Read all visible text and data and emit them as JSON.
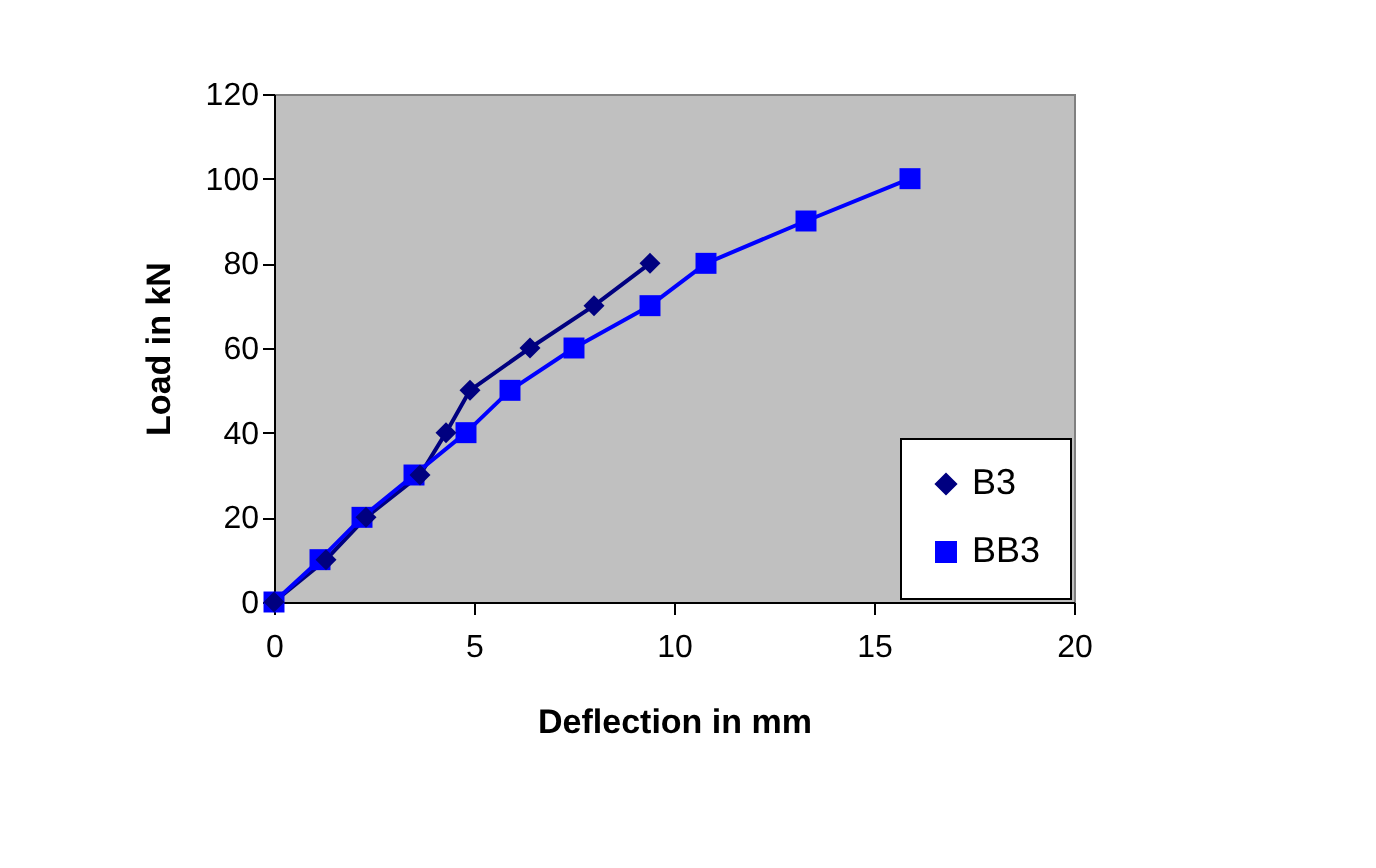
{
  "chart_data": {
    "type": "line",
    "xlabel": "Deflection in mm",
    "ylabel": "Load in kN",
    "xlim": [
      0,
      20
    ],
    "xticks": [
      0,
      5,
      10,
      15,
      20
    ],
    "ylim": [
      0,
      120
    ],
    "yticks": [
      0,
      20,
      40,
      60,
      80,
      100,
      120
    ],
    "grid": false,
    "legend": "bottom right",
    "line_style": "solid",
    "series": [
      {
        "name": "B3",
        "color": "#000080",
        "marker": "diamond",
        "x": [
          0,
          1.3,
          2.3,
          3.65,
          4.3,
          4.9,
          6.4,
          8.0,
          9.4
        ],
        "values": [
          0,
          10,
          20,
          30,
          40,
          50,
          60,
          70,
          80
        ]
      },
      {
        "name": "BB3",
        "color": "#0000ff",
        "marker": "square",
        "x": [
          0,
          1.15,
          2.2,
          3.5,
          4.8,
          5.9,
          7.5,
          9.4,
          10.8,
          13.3,
          15.9
        ],
        "values": [
          0,
          10,
          20,
          30,
          40,
          50,
          60,
          70,
          80,
          90,
          100
        ]
      }
    ]
  }
}
